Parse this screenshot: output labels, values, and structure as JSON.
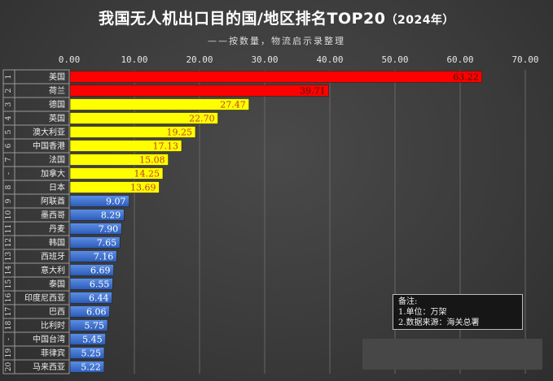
{
  "chart_data": {
    "type": "bar",
    "orientation": "horizontal",
    "title": "我国无人机出口目的国/地区排名TOP20",
    "title_year": "（2024年）",
    "subtitle": "——按数量，物流启示录整理",
    "xlim": [
      0,
      70
    ],
    "xticks": [
      "0.00",
      "10.00",
      "20.00",
      "30.00",
      "40.00",
      "50.00",
      "60.00",
      "70.00"
    ],
    "grid": true,
    "ranks": [
      "1",
      "2",
      "3",
      "4",
      "5",
      "6",
      "7",
      "-",
      "8",
      "9",
      "10",
      "11",
      "12",
      "13",
      "14",
      "15",
      "16",
      "17",
      "18",
      "-",
      "19",
      "20"
    ],
    "categories": [
      "美国",
      "荷兰",
      "德国",
      "英国",
      "澳大利亚",
      "中国香港",
      "法国",
      "加拿大",
      "日本",
      "阿联酋",
      "墨西哥",
      "丹麦",
      "韩国",
      "西班牙",
      "意大利",
      "泰国",
      "印度尼西亚",
      "巴西",
      "比利时",
      "中国台湾",
      "菲律宾",
      "马来西亚"
    ],
    "values": [
      63.22,
      39.71,
      27.47,
      22.7,
      19.25,
      17.13,
      15.08,
      14.25,
      13.69,
      9.07,
      8.29,
      7.9,
      7.65,
      7.16,
      6.69,
      6.55,
      6.44,
      6.06,
      5.75,
      5.45,
      5.25,
      5.22
    ],
    "value_labels": [
      "63.22",
      "39.71",
      "27.47",
      "22.70",
      "19.25",
      "17.13",
      "15.08",
      "14.25",
      "13.69",
      "9.07",
      "8.29",
      "7.90",
      "7.65",
      "7.16",
      "6.69",
      "6.55",
      "6.44",
      "6.06",
      "5.75",
      "5.45",
      "5.25",
      "5.22"
    ],
    "color_tiers": {
      "top2": "#ff0000",
      "above10": "#ffff00",
      "below10": "#3b6fcf"
    },
    "label_colors": {
      "top2": "#3a1a00",
      "above10": "#c0392b",
      "below10": "#ffffff"
    }
  },
  "notes": {
    "heading": "备注:",
    "line1": "1.单位：万架",
    "line2": "2.数据来源：海关总署"
  }
}
